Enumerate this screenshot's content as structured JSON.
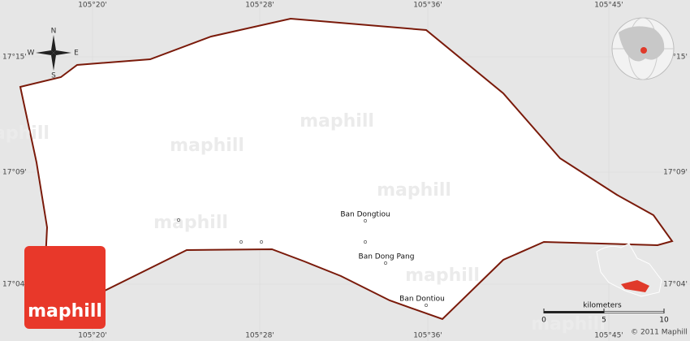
{
  "latitudes": [
    "17°15'",
    "17°09'",
    "17°04'"
  ],
  "longitudes": [
    "105°20'",
    "105°28'",
    "105°36'",
    "105°45'"
  ],
  "compass": {
    "n": "N",
    "s": "S",
    "e": "E",
    "w": "W"
  },
  "places": [
    "Ban Dongtiou",
    "Ban Dong Pang",
    "Ban Dontiou"
  ],
  "watermarks": [
    "maphill",
    "maphill",
    "maphill",
    "maphill",
    "maphill",
    "maphill",
    "maphill"
  ],
  "logo": "maphill",
  "scale": {
    "unit": "kilometers",
    "ticks": [
      0,
      5,
      10
    ]
  },
  "copyright": "© 2011 Maphill"
}
